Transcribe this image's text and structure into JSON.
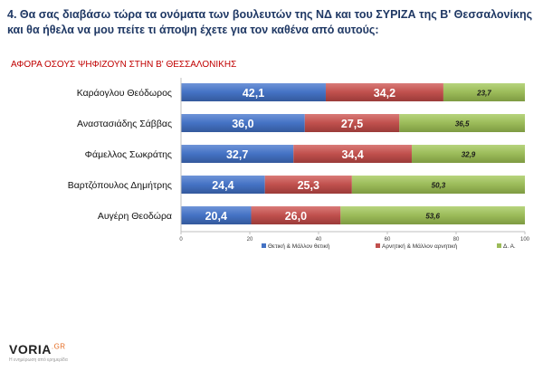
{
  "question": "4. Θα σας διαβάσω τώρα τα ονόματα των βουλευτών της ΝΔ και του ΣΥΡΙΖΑ της Β' Θεσσαλονίκης και θα ήθελα να μου πείτε τι άποψη έχετε για τον καθένα από αυτούς:",
  "subtitle": "ΑΦΟΡΑ ΟΣΟΥΣ ΨΗΦΙΖΟΥΝ ΣΤΗΝ Β' ΘΕΣΣΑΛΟΝΙΚΗΣ",
  "logo": {
    "text": "VORIA",
    "suffix": ".GR",
    "tagline": "Η ενημέρωση από ερημερίδα"
  },
  "chart_data": {
    "type": "bar",
    "orientation": "horizontal",
    "stacked": true,
    "categories": [
      "Καράογλου Θεόδωρος",
      "Αναστασιάδης Σάββας",
      "Φάμελλος Σωκράτης",
      "Βαρτζόπουλος Δημήτρης",
      "Αυγέρη Θεοδώρα"
    ],
    "series": [
      {
        "name": "Θετική & Μάλλον θετική",
        "values": [
          42.1,
          36.0,
          32.7,
          24.4,
          20.4
        ],
        "labels": [
          "42,1",
          "36,0",
          "32,7",
          "24,4",
          "20,4"
        ],
        "color": "#4472c4"
      },
      {
        "name": "Αρνητική & Μάλλον αρνητική",
        "values": [
          34.2,
          27.5,
          34.4,
          25.3,
          26.0
        ],
        "labels": [
          "34,2",
          "27,5",
          "34,4",
          "25,3",
          "26,0"
        ],
        "color": "#c0504d"
      },
      {
        "name": "Δ. Α.",
        "values": [
          23.7,
          36.5,
          32.9,
          50.3,
          53.6
        ],
        "labels": [
          "23,7",
          "36,5",
          "32,9",
          "50,3",
          "53,6"
        ],
        "color": "#9bbb59"
      }
    ],
    "xlim": [
      0,
      100
    ],
    "xticks": [
      "0",
      "20",
      "40",
      "60",
      "80",
      "100"
    ],
    "legend": "bottom",
    "grid": false
  }
}
